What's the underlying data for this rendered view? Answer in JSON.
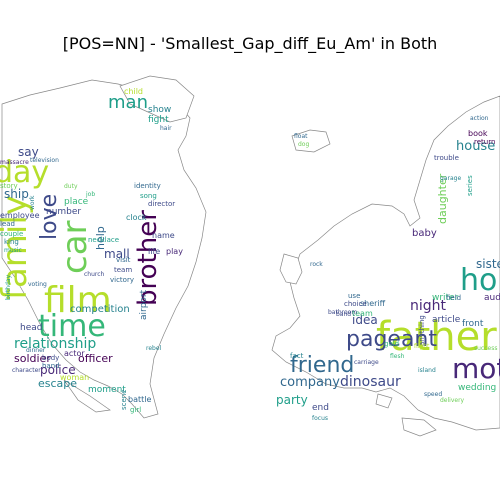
{
  "title": "[POS=NN] - 'Smallest_Gap_diff_Eu_Am' in Both",
  "colors": {
    "yellow": "#b5de2b",
    "lime": "#6ece58",
    "green": "#35b779",
    "teal": "#1f9e89",
    "cyan": "#26828e",
    "blue": "#31688e",
    "indigo": "#3e4a89",
    "purple": "#482878",
    "dark": "#440154",
    "land_stroke": "#777777"
  },
  "americas_words": [
    "day",
    "family",
    "film",
    "car",
    "love",
    "time",
    "brother",
    "man",
    "relationship",
    "ship",
    "soldier",
    "officer",
    "police",
    "escape",
    "help",
    "mall",
    "airport",
    "number",
    "place",
    "competition",
    "head",
    "actor",
    "show",
    "fight",
    "child",
    "clock",
    "name",
    "director",
    "identity",
    "song",
    "life",
    "play",
    "woman",
    "moment",
    "scene",
    "battle",
    "girl",
    "hand",
    "body",
    "work",
    "team",
    "visit",
    "necklace",
    "victory",
    "job",
    "duty",
    "voting",
    "dinner",
    "television",
    "say",
    "massacre",
    "rebel",
    "birthday",
    "employee",
    "couple",
    "story",
    "lead",
    "king",
    "music",
    "character",
    "hair",
    "church"
  ],
  "europe_words": [
    "father",
    "home",
    "mother",
    "pageant",
    "friend",
    "dinosaur",
    "night",
    "company",
    "party",
    "house",
    "daughter",
    "baby",
    "idea",
    "team",
    "sheriff",
    "writer",
    "article",
    "wedding",
    "end",
    "fact",
    "choice",
    "use",
    "gold",
    "field",
    "anything",
    "front",
    "audience",
    "book",
    "return",
    "trouble",
    "action",
    "series",
    "island",
    "carriage",
    "flesh",
    "focus",
    "speed",
    "delivery",
    "band",
    "float",
    "rock",
    "dog",
    "flight",
    "garage",
    "bathroom",
    "success",
    "sister"
  ]
}
